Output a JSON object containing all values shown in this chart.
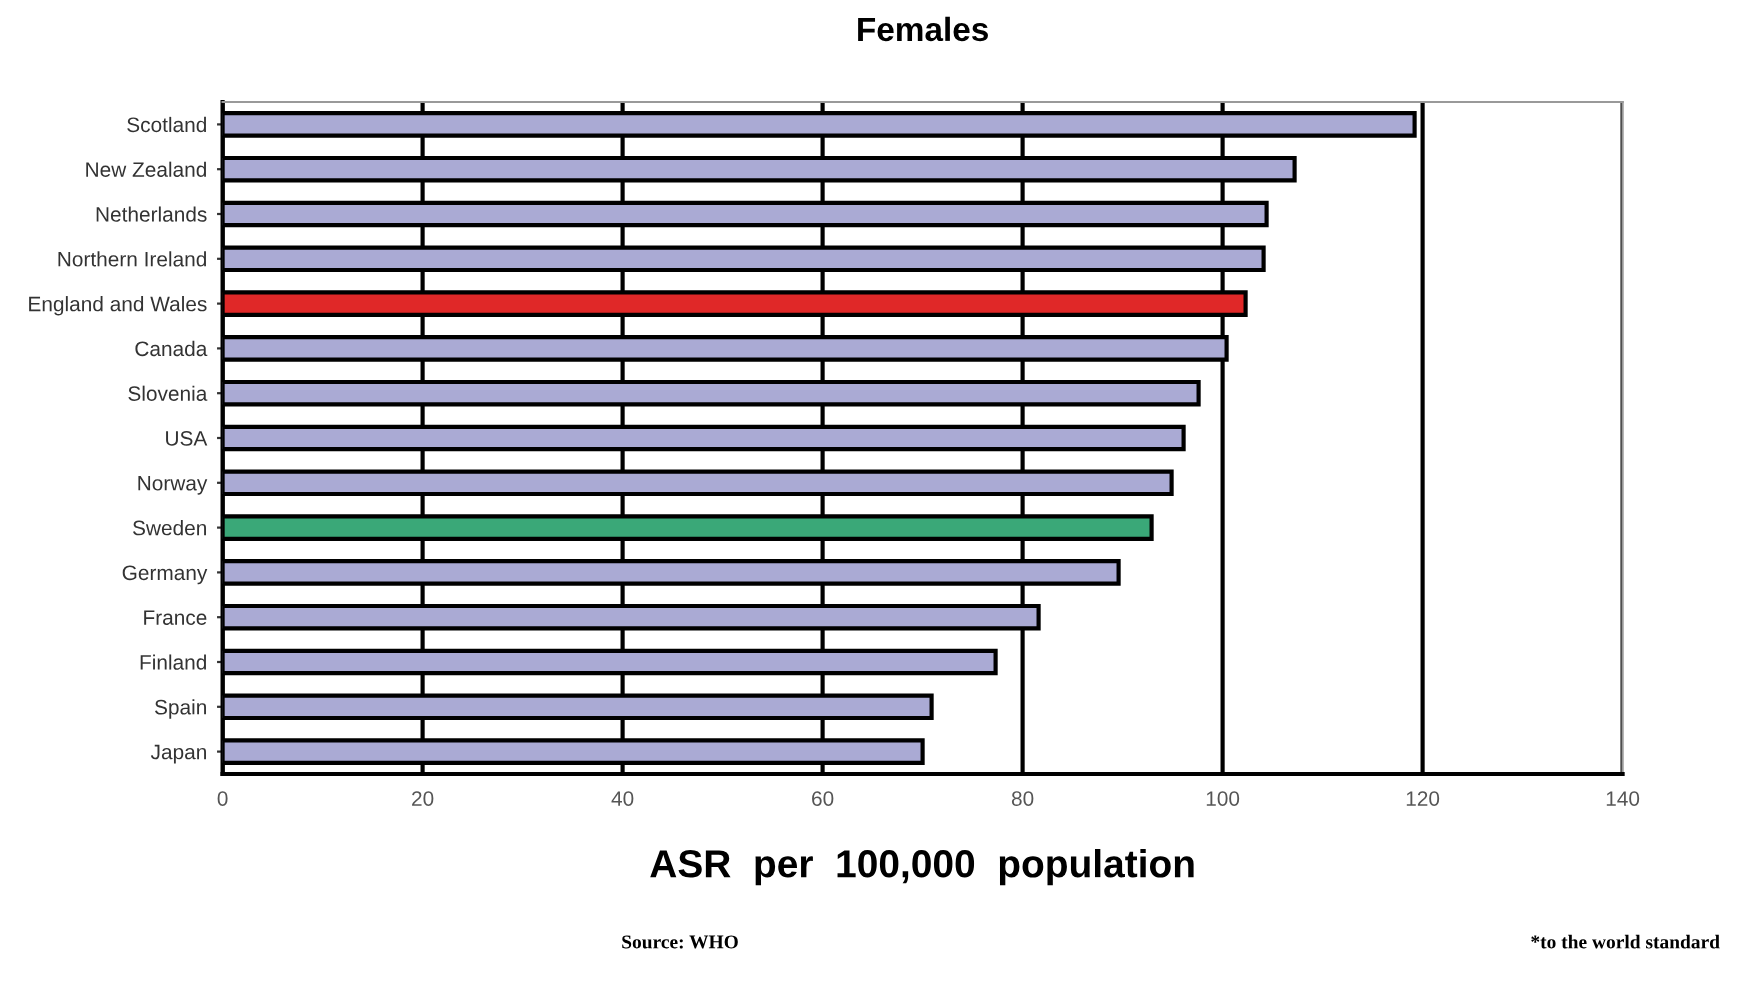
{
  "chart_data": {
    "type": "bar",
    "orientation": "horizontal",
    "title": "Females",
    "xlabel": "ASR  per  100,000  population",
    "categories": [
      "Scotland",
      "New Zealand",
      "Netherlands",
      "Northern Ireland",
      "England and Wales",
      "Canada",
      "Slovenia",
      "USA",
      "Norway",
      "Sweden",
      "Germany",
      "France",
      "Finland",
      "Spain",
      "Japan"
    ],
    "values": [
      119.2,
      107.2,
      104.4,
      104.1,
      102.3,
      100.4,
      97.6,
      96.1,
      94.9,
      92.9,
      89.6,
      81.6,
      77.3,
      70.9,
      70.0
    ],
    "colors": [
      "#aaaad4",
      "#aaaad4",
      "#aaaad4",
      "#aaaad4",
      "#e02828",
      "#aaaad4",
      "#aaaad4",
      "#aaaad4",
      "#aaaad4",
      "#3aa878",
      "#aaaad4",
      "#aaaad4",
      "#aaaad4",
      "#aaaad4",
      "#aaaad4"
    ],
    "xlim": [
      0,
      140
    ],
    "xticks": [
      0,
      20,
      40,
      60,
      80,
      100,
      120,
      140
    ],
    "grid": "x",
    "annotations": [
      "Source: WHO",
      "*to the world standard"
    ]
  }
}
